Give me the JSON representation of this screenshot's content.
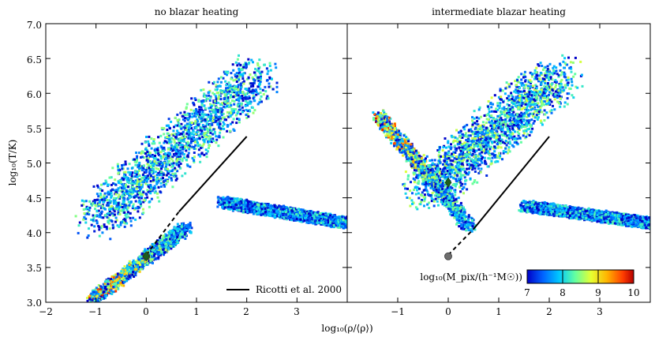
{
  "chart_data": [
    {
      "type": "heatmap",
      "title": "no blazar heating",
      "xlabel": "log₁₀(ρ/⟨ρ⟩)",
      "ylabel": "log₁₀(T/K)",
      "xlim": [
        -2,
        4
      ],
      "ylim": [
        3.0,
        7.0
      ],
      "xticks": [
        "−2",
        "−1",
        "0",
        "1",
        "2",
        "3"
      ],
      "yticks": [
        "3.0",
        "3.5",
        "4.0",
        "4.5",
        "5.0",
        "5.5",
        "6.0",
        "6.5",
        "7.0"
      ],
      "density_features": [
        {
          "name": "diffuse power-law branch",
          "from": {
            "x": -1.1,
            "y": 3.05
          },
          "to": {
            "x": 0.8,
            "y": 4.1
          },
          "peak_log_mass": 10
        },
        {
          "name": "warm-hot branch",
          "from": {
            "x": -1.0,
            "y": 4.2
          },
          "to": {
            "x": 2.2,
            "y": 6.3
          },
          "peak_log_mass": 8.6
        },
        {
          "name": "condensed cold branch",
          "from": {
            "x": 1.5,
            "y": 4.45
          },
          "to": {
            "x": 4.0,
            "y": 4.15
          },
          "peak_log_mass": 8.3
        }
      ],
      "ricotti_line": {
        "label": "Ricotti et al. 2000",
        "solid": [
          [
            0.65,
            4.3
          ],
          [
            2.0,
            5.38
          ]
        ],
        "dashed": [
          [
            0.0,
            3.68
          ],
          [
            0.65,
            4.3
          ]
        ]
      },
      "markers": [
        {
          "shape": "circle",
          "color": "#6e6e6e",
          "x": 0.0,
          "y": 3.66
        },
        {
          "shape": "diamond",
          "color": "#1e5d1e",
          "x": 0.0,
          "y": 3.66
        }
      ]
    },
    {
      "type": "heatmap",
      "title": "intermediate blazar heating",
      "xlabel": "log₁₀(ρ/⟨ρ⟩)",
      "xlim": [
        -2,
        4
      ],
      "ylim": [
        3.0,
        7.0
      ],
      "xticks": [
        "−1",
        "0",
        "1",
        "2",
        "3"
      ],
      "density_features": [
        {
          "name": "heated low-density branch",
          "from": {
            "x": -1.4,
            "y": 5.7
          },
          "to": {
            "x": 0.4,
            "y": 4.1
          },
          "peak_log_mass": 10
        },
        {
          "name": "warm-hot branch",
          "from": {
            "x": -0.5,
            "y": 4.6
          },
          "to": {
            "x": 2.2,
            "y": 6.3
          },
          "peak_log_mass": 8.7
        },
        {
          "name": "condensed cold branch",
          "from": {
            "x": 1.5,
            "y": 4.4
          },
          "to": {
            "x": 4.0,
            "y": 4.15
          },
          "peak_log_mass": 8.3
        }
      ],
      "ricotti_line": {
        "solid": [
          [
            0.5,
            4.05
          ],
          [
            2.0,
            5.38
          ]
        ],
        "dashed": [
          [
            0.0,
            3.68
          ],
          [
            0.5,
            4.05
          ]
        ]
      },
      "markers": [
        {
          "shape": "circle",
          "color": "#6e6e6e",
          "x": 0.0,
          "y": 3.66
        },
        {
          "shape": "diamond",
          "color": "#1e5d1e",
          "x": 0.0,
          "y": 4.72
        }
      ]
    }
  ],
  "colorbar": {
    "label": "log₁₀(M_pix/(h⁻¹M☉))",
    "min": 7,
    "max": 10,
    "ticks": [
      "7",
      "8",
      "9",
      "10"
    ],
    "colors": [
      "#0000c8",
      "#0064ff",
      "#00c8ff",
      "#64ffa0",
      "#e6ff32",
      "#ffb400",
      "#ff3c00",
      "#b40000"
    ]
  }
}
